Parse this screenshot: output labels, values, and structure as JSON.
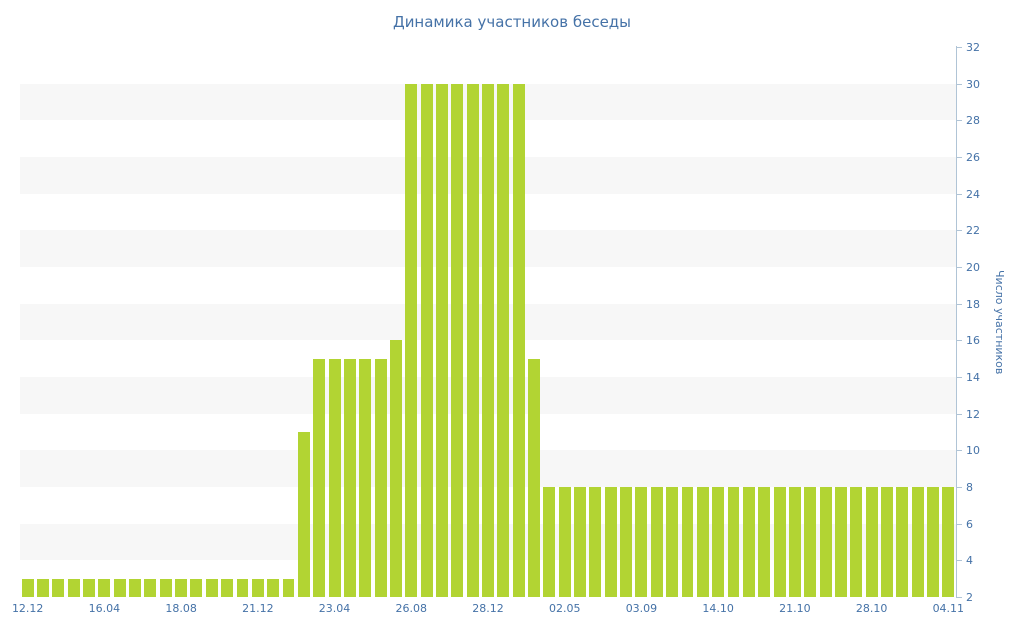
{
  "chart_data": {
    "type": "bar",
    "title": "Динамика участников беседы",
    "xlabel": "",
    "ylabel": "Число участников",
    "ylim": [
      2,
      32
    ],
    "y_tick_step": 2,
    "x_tick_every": 5,
    "x_tick_labels": [
      "12.12",
      "16.04",
      "18.08",
      "21.12",
      "23.04",
      "26.08",
      "28.12",
      "02.05",
      "03.09",
      "14.10",
      "21.10",
      "28.10",
      "04.11"
    ],
    "values": [
      3,
      3,
      3,
      3,
      3,
      3,
      3,
      3,
      3,
      3,
      3,
      3,
      3,
      3,
      3,
      3,
      3,
      3,
      11,
      15,
      15,
      15,
      15,
      15,
      16,
      30,
      30,
      30,
      30,
      30,
      30,
      30,
      30,
      15,
      8,
      8,
      8,
      8,
      8,
      8,
      8,
      8,
      8,
      8,
      8,
      8,
      8,
      8,
      8,
      8,
      8,
      8,
      8,
      8,
      8,
      8,
      8,
      8,
      8,
      8,
      8
    ],
    "legend_position": "none",
    "grid": "alternating-horizontal-bands",
    "colors": {
      "bar": "#b2d433",
      "band": "#f7f7f7",
      "axis_line": "#b0c4d6",
      "text": "#4572a7",
      "background": "#ffffff"
    }
  }
}
